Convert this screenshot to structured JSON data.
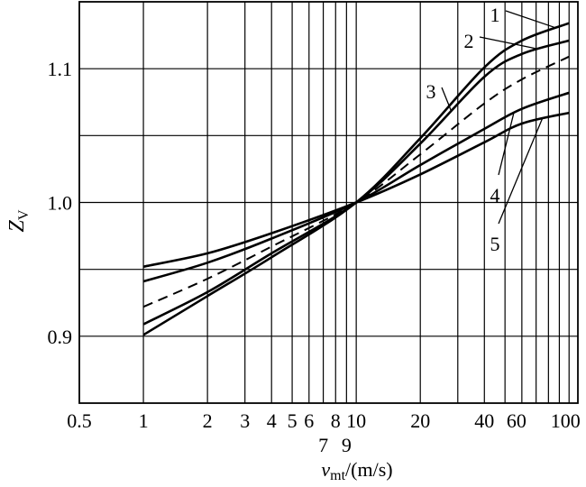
{
  "chart_data": {
    "type": "line",
    "x_scale": "log",
    "y_scale": "linear",
    "xlim": [
      0.5,
      110
    ],
    "ylim": [
      0.85,
      1.15
    ],
    "grid": true,
    "xlabel": {
      "main": "v",
      "sub": "mt",
      "suffix": "/(m/s)"
    },
    "ylabel": {
      "main": "Z",
      "sub": "V"
    },
    "x_ticks": [
      {
        "value": 0.5,
        "label": "0.5"
      },
      {
        "value": 1,
        "label": "1"
      },
      {
        "value": 2,
        "label": "2"
      },
      {
        "value": 3,
        "label": "3"
      },
      {
        "value": 4,
        "label": "4"
      },
      {
        "value": 5,
        "label": "5"
      },
      {
        "value": 6,
        "label": "6"
      },
      {
        "value": 8,
        "label": "8"
      },
      {
        "value": 10,
        "label": "10"
      },
      {
        "value": 20,
        "label": "20"
      },
      {
        "value": 40,
        "label": "40"
      },
      {
        "value": 60,
        "label": "60"
      },
      {
        "value": 100,
        "label": "100"
      }
    ],
    "x_ticks_lower": [
      {
        "value": 7,
        "label": "7"
      },
      {
        "value": 9,
        "label": "9"
      }
    ],
    "x_gridlines": [
      1,
      2,
      3,
      4,
      5,
      6,
      7,
      8,
      9,
      10,
      20,
      30,
      40,
      50,
      60,
      70,
      80,
      90,
      100
    ],
    "y_ticks": [
      {
        "value": 0.9,
        "label": "0.9"
      },
      {
        "value": 1.0,
        "label": "1.0"
      },
      {
        "value": 1.1,
        "label": "1.1"
      }
    ],
    "y_gridlines": [
      0.9,
      0.95,
      1.0,
      1.05,
      1.1
    ],
    "series": [
      {
        "name": "1",
        "dashed": false,
        "x": [
          1,
          2,
          4,
          10,
          20,
          40,
          60,
          100
        ],
        "y": [
          0.901,
          0.93,
          0.959,
          1.0,
          1.048,
          1.101,
          1.121,
          1.134
        ]
      },
      {
        "name": "2",
        "dashed": false,
        "x": [
          1,
          2,
          4,
          10,
          20,
          40,
          60,
          100
        ],
        "y": [
          0.909,
          0.933,
          0.962,
          1.0,
          1.044,
          1.094,
          1.111,
          1.121
        ]
      },
      {
        "name": "3",
        "dashed": true,
        "x": [
          1,
          2,
          4,
          10,
          20,
          40,
          60,
          100
        ],
        "y": [
          0.922,
          0.943,
          0.967,
          1.0,
          1.036,
          1.074,
          1.092,
          1.109
        ]
      },
      {
        "name": "4",
        "dashed": false,
        "x": [
          1,
          2,
          4,
          10,
          20,
          40,
          60,
          100
        ],
        "y": [
          0.941,
          0.955,
          0.973,
          1.0,
          1.028,
          1.055,
          1.07,
          1.082
        ]
      },
      {
        "name": "5",
        "dashed": false,
        "x": [
          1,
          2,
          4,
          10,
          20,
          40,
          60,
          100
        ],
        "y": [
          0.952,
          0.962,
          0.977,
          1.0,
          1.021,
          1.045,
          1.059,
          1.067
        ]
      }
    ],
    "curve_labels": [
      {
        "text": "1",
        "pointer_to": [
          85,
          1.131
        ]
      },
      {
        "text": "2",
        "pointer_to": [
          70,
          1.115
        ]
      },
      {
        "text": "3",
        "pointer_to": [
          28,
          1.068
        ]
      },
      {
        "text": "4",
        "pointer_to": [
          55,
          1.067
        ]
      },
      {
        "text": "5",
        "pointer_to": [
          75,
          1.063
        ]
      }
    ]
  }
}
